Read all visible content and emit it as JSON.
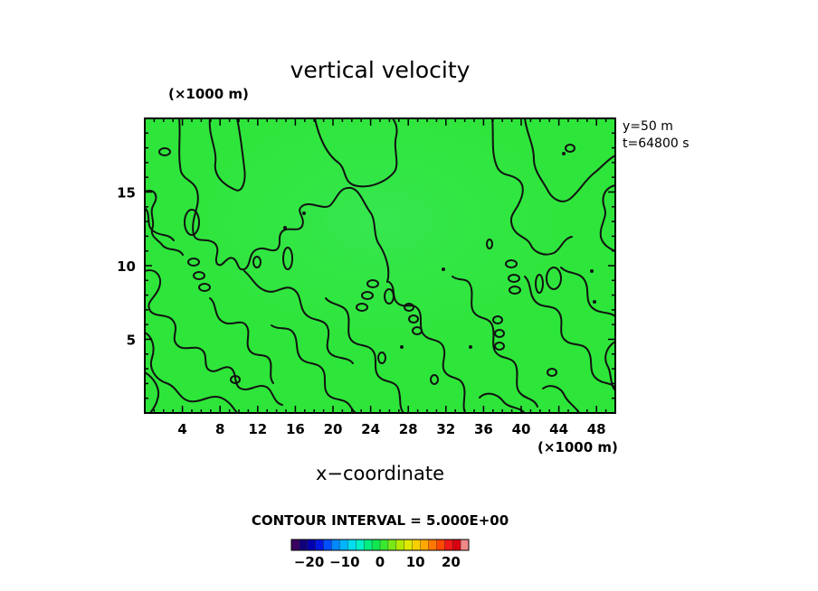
{
  "chart_data": {
    "type": "heatmap",
    "title": "vertical velocity",
    "xlabel": "x−coordinate",
    "x_unit": "(×1000 m)",
    "y_unit": "(×1000 m)",
    "xlim": [
      0,
      50
    ],
    "ylim": [
      0,
      20
    ],
    "x_ticks": [
      4,
      8,
      12,
      16,
      20,
      24,
      28,
      32,
      36,
      40,
      44,
      48
    ],
    "y_ticks": [
      5,
      10,
      15
    ],
    "annotations": [
      "y=50 m",
      "t=64800 s"
    ],
    "contour_interval": "CONTOUR INTERVAL = 5.000E+00",
    "field_value_approx": 0,
    "colorbar": {
      "ticks": [
        {
          "value": -20,
          "label": "−20"
        },
        {
          "value": -10,
          "label": "−10"
        },
        {
          "value": 0,
          "label": "0"
        },
        {
          "value": 10,
          "label": "10"
        },
        {
          "value": 20,
          "label": "20"
        }
      ],
      "range": [
        -25,
        25
      ],
      "colors": [
        "#3a0060",
        "#12007a",
        "#0000b0",
        "#0018e0",
        "#0050ff",
        "#0088ff",
        "#00b4ff",
        "#00dcf0",
        "#00f0c8",
        "#00ee80",
        "#10e850",
        "#3ae830",
        "#7ae818",
        "#b4e800",
        "#e0e800",
        "#f8d000",
        "#ffa800",
        "#ff7800",
        "#ff4800",
        "#f01818",
        "#d80010",
        "#f08888"
      ],
      "field_color": "#2ee53a"
    }
  }
}
